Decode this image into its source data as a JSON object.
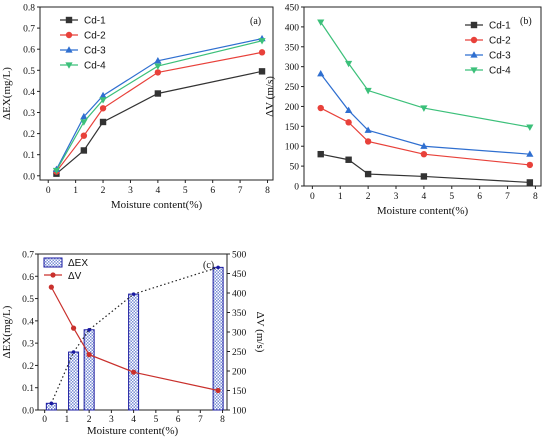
{
  "colors": {
    "black": "#333333",
    "red": "#e8413a",
    "blue": "#2f6fd0",
    "green": "#3cc07a",
    "bar_edge": "#1a1aa0",
    "bar_fill": "#7b8fd6",
    "dotted": "#222222",
    "dv_line": "#c9302c"
  },
  "chart_data": [
    {
      "type": "line",
      "panel_label": "(a)",
      "xlabel": "Moisture content(%)",
      "ylabel": "ΔEX(mg/L)",
      "xlim": [
        -0.3,
        8.2
      ],
      "ylim": [
        -0.02,
        0.8
      ],
      "x_ticks": [
        "0",
        "1",
        "2",
        "3",
        "4",
        "5",
        "6",
        "7",
        "8"
      ],
      "y_ticks": [
        "0.0",
        "0.1",
        "0.2",
        "0.3",
        "0.4",
        "0.5",
        "0.6",
        "0.7",
        "0.8"
      ],
      "legend_position": "top-left",
      "x": [
        0.3,
        1.3,
        2,
        4,
        7.8
      ],
      "series": [
        {
          "name": "Cd-1",
          "marker": "square",
          "color": "#333333",
          "values": [
            0.01,
            0.12,
            0.255,
            0.39,
            0.495
          ]
        },
        {
          "name": "Cd-2",
          "marker": "circle",
          "color": "#e8413a",
          "values": [
            0.02,
            0.19,
            0.32,
            0.49,
            0.585
          ]
        },
        {
          "name": "Cd-3",
          "marker": "triangle-up",
          "color": "#2f6fd0",
          "values": [
            0.03,
            0.28,
            0.38,
            0.545,
            0.65
          ]
        },
        {
          "name": "Cd-4",
          "marker": "triangle-down",
          "color": "#3cc07a",
          "values": [
            0.025,
            0.255,
            0.36,
            0.52,
            0.64
          ]
        }
      ]
    },
    {
      "type": "line",
      "panel_label": "(b)",
      "xlabel": "Moisture content(%)",
      "ylabel": "ΔV (m/s)",
      "xlim": [
        -0.3,
        8.2
      ],
      "ylim": [
        0,
        450
      ],
      "x_ticks": [
        "0",
        "1",
        "2",
        "3",
        "4",
        "5",
        "6",
        "7",
        "8"
      ],
      "y_ticks": [
        "0",
        "50",
        "100",
        "150",
        "200",
        "250",
        "300",
        "350",
        "400",
        "450"
      ],
      "legend_position": "top-right",
      "x": [
        0.3,
        1.3,
        2,
        4,
        7.8
      ],
      "series": [
        {
          "name": "Cd-1",
          "marker": "square",
          "color": "#333333",
          "values": [
            80,
            66,
            30,
            24,
            9
          ]
        },
        {
          "name": "Cd-2",
          "marker": "circle",
          "color": "#e8413a",
          "values": [
            196,
            160,
            112,
            80,
            53
          ]
        },
        {
          "name": "Cd-3",
          "marker": "triangle-up",
          "color": "#2f6fd0",
          "values": [
            282,
            190,
            140,
            100,
            80
          ]
        },
        {
          "name": "Cd-4",
          "marker": "triangle-down",
          "color": "#3cc07a",
          "values": [
            412,
            308,
            240,
            196,
            148
          ]
        }
      ]
    },
    {
      "type": "bar",
      "panel_label": "(c)",
      "xlabel": "Moisture content(%)",
      "ylabel": "ΔEX(mg/L)",
      "ylabel_right": "ΔV (m/s)",
      "xlim": [
        -0.3,
        8.2
      ],
      "ylim": [
        0,
        0.7
      ],
      "ylim_right": [
        100,
        500
      ],
      "x_ticks": [
        "0",
        "1",
        "2",
        "3",
        "4",
        "5",
        "6",
        "7",
        "8"
      ],
      "y_ticks": [
        "0.0",
        "0.1",
        "0.2",
        "0.3",
        "0.4",
        "0.5",
        "0.6",
        "0.7"
      ],
      "y_ticks_right": [
        "100",
        "150",
        "200",
        "250",
        "300",
        "350",
        "400",
        "450",
        "500"
      ],
      "legend_position": "top-left",
      "x": [
        0.3,
        1.3,
        2,
        4,
        7.8
      ],
      "series": [
        {
          "name": "ΔEX",
          "kind": "bar",
          "axis": "left",
          "values": [
            0.03,
            0.26,
            0.36,
            0.52,
            0.64
          ]
        },
        {
          "name": "ΔV",
          "kind": "line",
          "axis": "right",
          "values": [
            415,
            310,
            242,
            197,
            150
          ]
        }
      ]
    }
  ]
}
